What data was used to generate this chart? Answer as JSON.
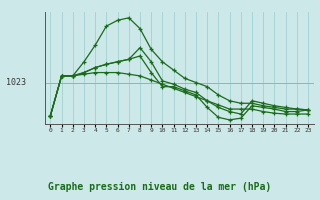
{
  "xlabel": "Graphe pression niveau de la mer (hPa)",
  "background_color": "#cce8e8",
  "grid_color": "#99cccc",
  "line_color": "#1a6b1a",
  "reference_line_color": "#aaaaaa",
  "reference_line_y": 1023,
  "x_ticks": [
    0,
    1,
    2,
    3,
    4,
    5,
    6,
    7,
    8,
    9,
    10,
    11,
    12,
    13,
    14,
    15,
    16,
    17,
    18,
    19,
    20,
    21,
    22,
    23
  ],
  "ylim": [
    1018.0,
    1031.5
  ],
  "series": [
    [
      1019.0,
      1023.8,
      1023.8,
      1025.5,
      1027.5,
      1029.8,
      1030.5,
      1030.8,
      1029.5,
      1027.0,
      1025.5,
      1024.5,
      1023.5,
      1023.0,
      1022.5,
      1021.5,
      1020.8,
      1020.5,
      1020.5,
      1020.2,
      1020.0,
      1019.8,
      1019.8,
      1019.7
    ],
    [
      1019.0,
      1023.8,
      1023.8,
      1024.2,
      1024.8,
      1025.2,
      1025.5,
      1025.8,
      1027.2,
      1025.5,
      1023.2,
      1022.8,
      1022.2,
      1021.8,
      1020.8,
      1020.0,
      1019.5,
      1019.2,
      1020.8,
      1020.5,
      1020.2,
      1020.0,
      1019.8,
      1019.7
    ],
    [
      1019.0,
      1023.8,
      1023.8,
      1024.2,
      1024.8,
      1025.2,
      1025.5,
      1025.8,
      1026.2,
      1024.2,
      1022.5,
      1022.5,
      1022.0,
      1021.5,
      1020.0,
      1018.8,
      1018.5,
      1018.7,
      1020.2,
      1020.0,
      1019.8,
      1019.5,
      1019.5,
      1019.7
    ],
    [
      1019.0,
      1023.8,
      1023.8,
      1024.0,
      1024.2,
      1024.2,
      1024.2,
      1024.0,
      1023.8,
      1023.3,
      1022.8,
      1022.3,
      1021.8,
      1021.3,
      1020.8,
      1020.3,
      1019.8,
      1019.8,
      1019.8,
      1019.5,
      1019.3,
      1019.2,
      1019.2,
      1019.2
    ]
  ]
}
